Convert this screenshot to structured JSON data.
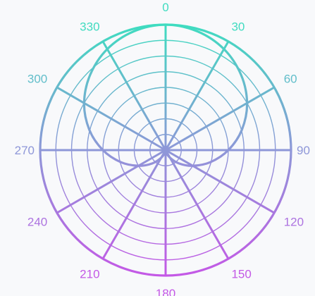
{
  "chart_data": {
    "type": "line",
    "subtype": "polar",
    "title": "",
    "angular_axis": {
      "direction": "clockwise",
      "rotation": "0 at top",
      "tick_labels": [
        "0",
        "30",
        "60",
        "90",
        "120",
        "150",
        "180",
        "210",
        "240",
        "270",
        "300",
        "330"
      ],
      "tick_values": [
        0,
        30,
        60,
        90,
        120,
        150,
        180,
        210,
        240,
        270,
        300,
        330
      ]
    },
    "radial_axis": {
      "range": [
        0,
        1
      ],
      "grid_circles": [
        0.125,
        0.25,
        0.375,
        0.5,
        0.625,
        0.75,
        0.875,
        1.0
      ],
      "tick_labels_shown": false
    },
    "series": [
      {
        "theta": [
          0,
          15,
          30,
          45,
          60,
          75,
          90,
          105,
          120,
          135,
          150,
          165,
          180,
          195,
          210,
          225,
          240,
          255,
          270,
          285,
          300,
          315,
          330,
          345
        ],
        "r": [
          1.0,
          0.98,
          0.93,
          0.85,
          0.75,
          0.63,
          0.5,
          0.37,
          0.25,
          0.15,
          0.07,
          0.02,
          0.0,
          0.02,
          0.07,
          0.15,
          0.25,
          0.37,
          0.5,
          0.63,
          0.75,
          0.85,
          0.93,
          0.98
        ]
      }
    ],
    "grid": true,
    "legend": "none",
    "colors": {
      "gradient_top": "#3fdcc0",
      "gradient_mid": "#8e97d8",
      "gradient_bottom": "#c458e6"
    }
  }
}
